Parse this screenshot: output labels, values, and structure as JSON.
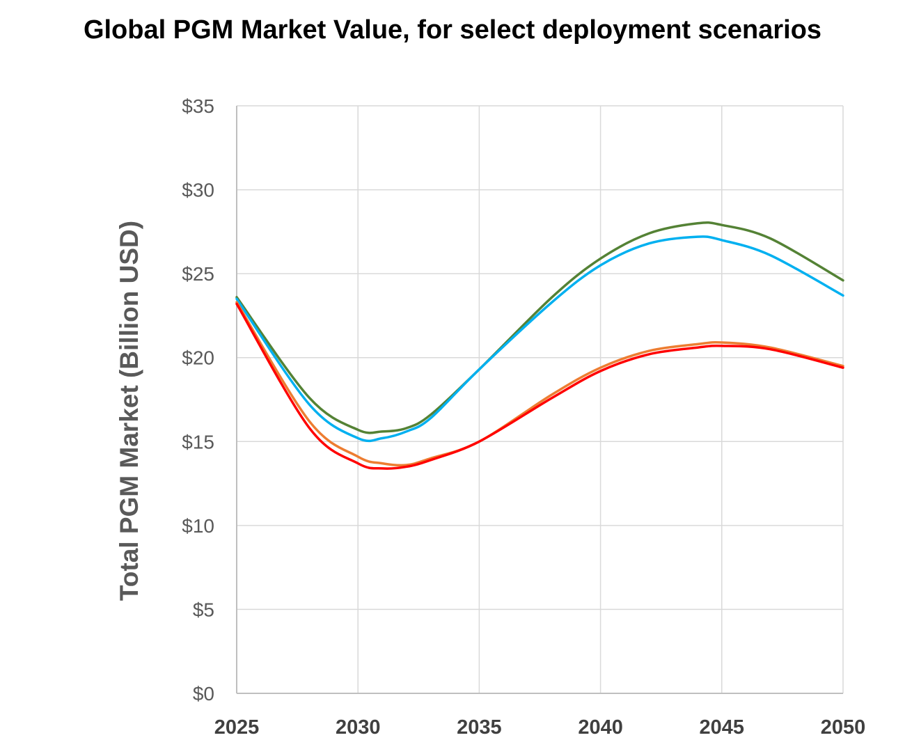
{
  "chart_data": {
    "type": "line",
    "title": "Global PGM Market Value, for select deployment scenarios",
    "xlabel": "",
    "ylabel": "Total PGM Market (Billion USD)",
    "xlim": [
      2025,
      2050
    ],
    "ylim": [
      0,
      35
    ],
    "x_ticks": [
      2025,
      2030,
      2035,
      2040,
      2045,
      2050
    ],
    "y_ticks": [
      0,
      5,
      10,
      15,
      20,
      25,
      30,
      35
    ],
    "y_tick_labels": [
      "$0",
      "$5",
      "$10",
      "$15",
      "$20",
      "$25",
      "$30",
      "$35"
    ],
    "grid": true,
    "legend": "none",
    "x": [
      2025,
      2028,
      2030,
      2031,
      2032,
      2033,
      2035,
      2038,
      2040,
      2042,
      2044,
      2045,
      2047,
      2050
    ],
    "series": [
      {
        "color": "#548235",
        "values": [
          23.6,
          17.6,
          15.7,
          15.6,
          15.8,
          16.6,
          19.3,
          23.6,
          25.9,
          27.4,
          28.0,
          27.9,
          27.1,
          24.6
        ]
      },
      {
        "color": "#00b0f0",
        "values": [
          23.5,
          17.2,
          15.2,
          15.2,
          15.6,
          16.4,
          19.3,
          23.3,
          25.5,
          26.8,
          27.2,
          27.0,
          26.1,
          23.7
        ]
      },
      {
        "color": "#ed7d31",
        "values": [
          23.3,
          16.2,
          14.1,
          13.7,
          13.6,
          14.0,
          15.0,
          17.8,
          19.4,
          20.4,
          20.8,
          20.9,
          20.6,
          19.5
        ]
      },
      {
        "color": "#ff0000",
        "values": [
          23.2,
          15.8,
          13.7,
          13.4,
          13.5,
          13.9,
          15.0,
          17.6,
          19.2,
          20.2,
          20.6,
          20.7,
          20.5,
          19.4
        ]
      }
    ]
  }
}
